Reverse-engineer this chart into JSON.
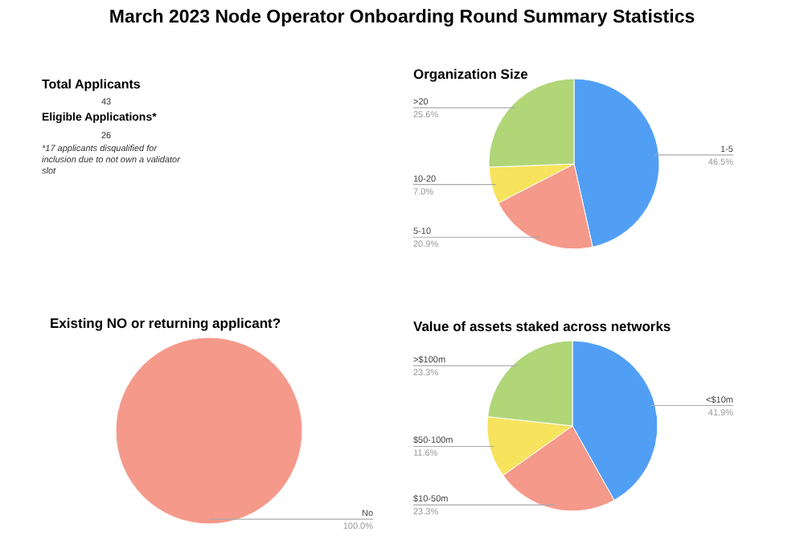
{
  "chart_data": [
    {
      "type": "other",
      "title": "March 2023 Node Operator Onboarding Round Summary Statistics",
      "annotations": [
        "Total Applicants",
        "43",
        "Eligible Applications*",
        "26",
        "*17 applicants disqualified for inclusion due to not own a validator slot"
      ]
    },
    {
      "type": "pie",
      "title": "Organization Size",
      "categories": [
        "1-5",
        "5-10",
        "10-20",
        ">20"
      ],
      "values": [
        46.5,
        20.9,
        7.0,
        25.6
      ],
      "value_labels": [
        "46.5%",
        "20.9%",
        "7.0%",
        "25.6%"
      ],
      "colors": [
        "#519ff5",
        "#f5998a",
        "#f7e35e",
        "#b0d678"
      ]
    },
    {
      "type": "pie",
      "title": "Existing NO or returning applicant?",
      "categories": [
        "No"
      ],
      "values": [
        100
      ],
      "value_labels": [
        "100.0%"
      ],
      "colors": [
        "#f5998a"
      ]
    },
    {
      "type": "pie",
      "title": "Value of assets staked across networks",
      "categories": [
        "<$10m",
        "$10-50m",
        "$50-100m",
        ">$100m"
      ],
      "values": [
        41.9,
        23.3,
        11.6,
        23.3
      ],
      "value_labels": [
        "41.9%",
        "23.3%",
        "11.6%",
        "23.3%"
      ],
      "colors": [
        "#519ff5",
        "#f5998a",
        "#f7e35e",
        "#b0d678"
      ]
    }
  ]
}
